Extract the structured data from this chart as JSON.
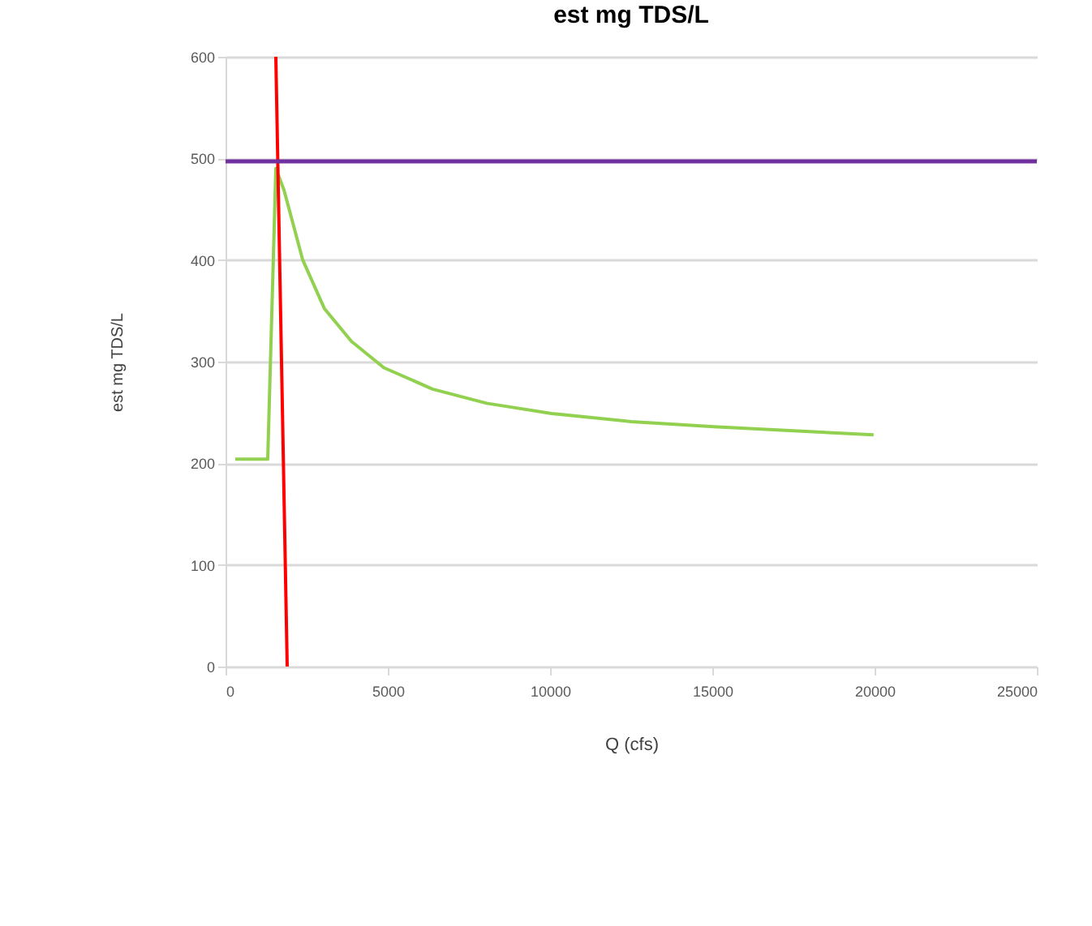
{
  "chart_data": {
    "type": "line",
    "title": "est mg TDS/L",
    "xlabel": "Q (cfs)",
    "ylabel": "est mg TDS/L",
    "xlim": [
      0,
      25000
    ],
    "xticks": [
      0,
      5000,
      10000,
      15000,
      20000,
      25000
    ],
    "ylim": [
      0,
      600
    ],
    "yticks": [
      0,
      100,
      200,
      300,
      400,
      500,
      600
    ],
    "grid": "y",
    "marker": "none",
    "line_style": "solid",
    "series": [
      {
        "color": "#92d050",
        "x": [
          300,
          1300,
          1550,
          1800,
          2380,
          3050,
          3880,
          4880,
          6380,
          8050,
          10050,
          12500,
          15050,
          17500,
          19970
        ],
        "values": [
          204,
          204,
          490,
          469,
          400,
          352,
          320,
          294,
          273,
          259,
          249,
          241,
          236,
          232,
          228
        ]
      },
      {
        "color": "#ff0000",
        "x": [
          1550,
          1900
        ],
        "values": [
          600,
          0
        ]
      }
    ],
    "ref_lines": [
      {
        "axis": "y",
        "value": 497,
        "color": "#7030a0"
      }
    ]
  }
}
